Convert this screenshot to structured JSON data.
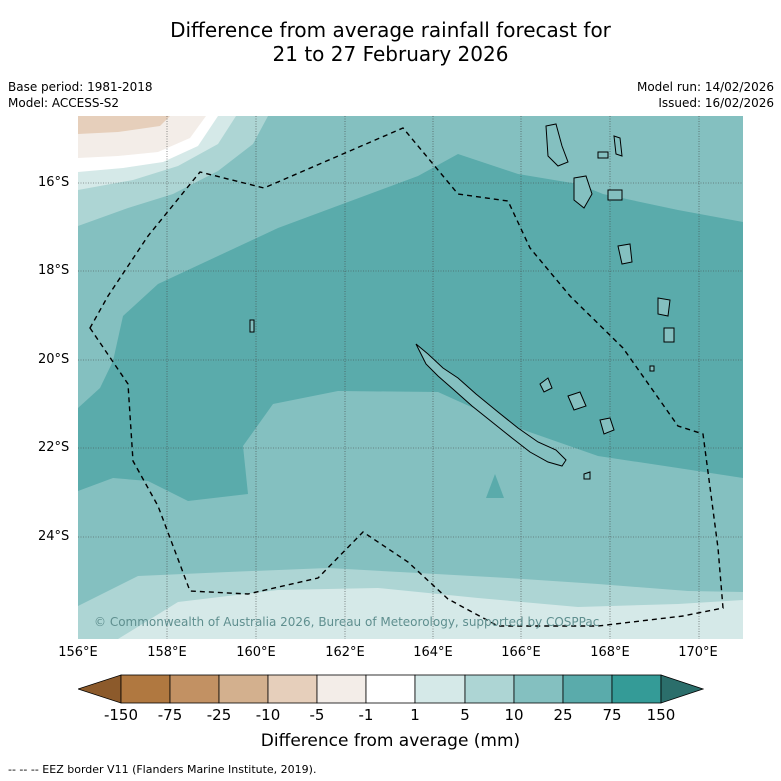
{
  "title_line1": "Difference from average rainfall forecast for",
  "title_line2": "21 to 27 February 2026",
  "meta": {
    "base_period": "Base period: 1981-2018",
    "model": "Model: ACCESS-S2",
    "model_run": "Model run: 14/02/2026",
    "issued": "Issued: 16/02/2026"
  },
  "lat_labels": [
    "16°S",
    "18°S",
    "20°S",
    "22°S",
    "24°S"
  ],
  "lon_labels": [
    "156°E",
    "158°E",
    "160°E",
    "162°E",
    "164°E",
    "166°E",
    "168°E",
    "170°E"
  ],
  "copyright": "© Commonwealth of Australia 2026, Bureau of Meteorology, supported by COSPPac",
  "colorbar": {
    "labels": [
      "-150",
      "-75",
      "-25",
      "-10",
      "-5",
      "-1",
      "1",
      "5",
      "10",
      "25",
      "75",
      "150"
    ],
    "colors": {
      "dry_extreme": "#8c5a2b",
      "dry5": "#b07840",
      "dry4": "#c29163",
      "dry3": "#d3b08e",
      "dry2": "#e6cfbb",
      "dry1": "#f3ede8",
      "neutral": "#ffffff",
      "wet1": "#d5e9e8",
      "wet2": "#add5d4",
      "wet3": "#84c0c0",
      "wet4": "#5aabab",
      "wet5": "#349b97",
      "wet_extreme": "#2b6e6b"
    },
    "title": "Difference from average (mm)"
  },
  "footer": "--  --  -- EEZ border V11 (Flanders Marine Institute, 2019)."
}
